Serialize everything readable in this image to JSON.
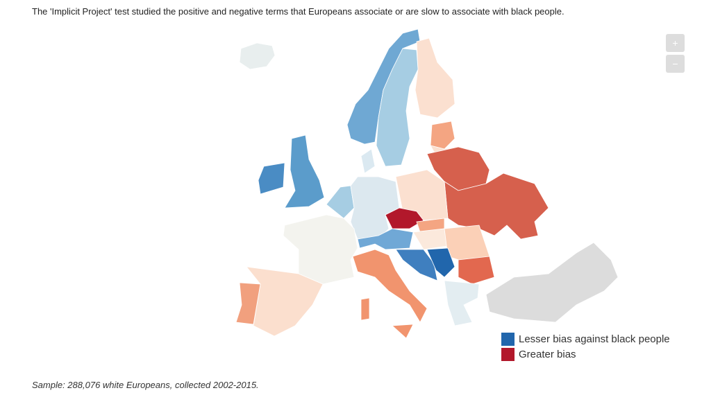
{
  "header": {
    "title": "The 'Implicit Project' test studied the positive and negative terms that Europeans associate or are slow to associate with black people."
  },
  "controls": {
    "zoom_in": "+",
    "zoom_out": "−"
  },
  "legend": {
    "items": [
      {
        "label": "Lesser bias against black people",
        "color": "#2166ac"
      },
      {
        "label": "Greater bias",
        "color": "#b2182b"
      }
    ]
  },
  "footer": {
    "note": "Sample: 288,076 white Europeans, collected 2002-2015."
  }
}
